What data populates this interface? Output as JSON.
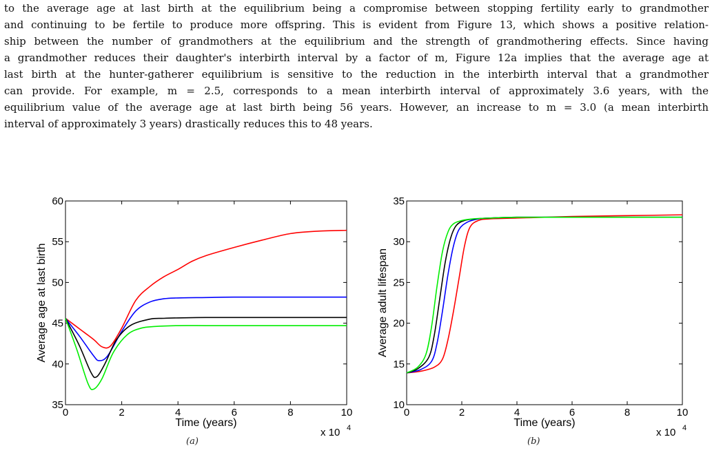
{
  "paragraph": {
    "lines": [
      "to the average age at last birth at the equilibrium being a compromise between stopping fertility early to grandmother",
      "and continuing to be fertile to produce more offspring. This is evident from Figure 13, which shows a positive relation-",
      "ship between the number of grandmothers at the equilibrium and the strength of grandmothering effects. Since having",
      "a grandmother reduces their daughter's interbirth interval by a factor of m, Figure 12a implies that the average age at",
      "last birth at the hunter-gatherer equilibrium is sensitive to the reduction in the interbirth interval that a grandmother",
      "can provide. For example, m = 2.5, corresponds to a mean interbirth interval of approximately 3.6 years, with the",
      "equilibrium value of the average age at last birth being 56 years. However, an increase to m = 3.0 (a mean interbirth",
      "interval of approximately 3 years) drastically reduces this to 48 years."
    ]
  },
  "chart_data": [
    {
      "type": "line",
      "panel_caption": "(a)",
      "xlabel": "Time (years)",
      "ylabel": "Average age at last birth",
      "x_multiplier": "x 10",
      "x_multiplier_exp": "4",
      "xlim": [
        0,
        10
      ],
      "ylim": [
        35,
        60
      ],
      "xticks": [
        "0",
        "2",
        "4",
        "6",
        "8",
        "10"
      ],
      "yticks": [
        "35",
        "40",
        "45",
        "50",
        "55",
        "60"
      ],
      "xtick_values": [
        0,
        2,
        4,
        6,
        8,
        10
      ],
      "ytick_values": [
        35,
        40,
        45,
        50,
        55,
        60
      ],
      "series": [
        {
          "color": "#ff0000",
          "x": [
            0,
            0.5,
            1.0,
            1.3,
            1.6,
            2.0,
            2.5,
            3.0,
            3.5,
            4.0,
            4.5,
            5.0,
            6.0,
            7.0,
            8.0,
            9.0,
            10.0
          ],
          "y": [
            45.6,
            44.3,
            43.0,
            42.1,
            42.2,
            44.4,
            47.8,
            49.5,
            50.7,
            51.6,
            52.6,
            53.3,
            54.3,
            55.2,
            56.0,
            56.3,
            56.4
          ]
        },
        {
          "color": "#0000ff",
          "x": [
            0,
            0.5,
            1.0,
            1.2,
            1.5,
            2.0,
            2.5,
            3.0,
            3.5,
            4.0,
            5.0,
            6.0,
            8.0,
            10.0
          ],
          "y": [
            45.6,
            43.4,
            41.0,
            40.4,
            41.0,
            44.0,
            46.5,
            47.6,
            48.0,
            48.1,
            48.15,
            48.2,
            48.2,
            48.2
          ]
        },
        {
          "color": "#000000",
          "x": [
            0,
            0.5,
            0.9,
            1.1,
            1.4,
            1.8,
            2.3,
            3.0,
            3.5,
            4.0,
            5.0,
            6.0,
            8.0,
            10.0
          ],
          "y": [
            45.6,
            42.2,
            39.0,
            38.4,
            40.0,
            42.9,
            44.7,
            45.5,
            45.6,
            45.65,
            45.7,
            45.7,
            45.7,
            45.7
          ]
        },
        {
          "color": "#00ee00",
          "x": [
            0,
            0.4,
            0.8,
            1.0,
            1.3,
            1.7,
            2.2,
            2.7,
            3.2,
            4.0,
            5.0,
            6.0,
            8.0,
            10.0
          ],
          "y": [
            45.6,
            41.8,
            37.6,
            36.9,
            38.2,
            41.4,
            43.6,
            44.4,
            44.6,
            44.7,
            44.7,
            44.7,
            44.7,
            44.7
          ]
        }
      ]
    },
    {
      "type": "line",
      "panel_caption": "(b)",
      "xlabel": "Time (years)",
      "ylabel": "Average adult lifespan",
      "x_multiplier": "x 10",
      "x_multiplier_exp": "4",
      "xlim": [
        0,
        10
      ],
      "ylim": [
        10,
        35
      ],
      "xticks": [
        "0",
        "2",
        "4",
        "6",
        "8",
        "10"
      ],
      "yticks": [
        "10",
        "15",
        "20",
        "25",
        "30",
        "35"
      ],
      "xtick_values": [
        0,
        2,
        4,
        6,
        8,
        10
      ],
      "ytick_values": [
        10,
        15,
        20,
        25,
        30,
        35
      ],
      "series": [
        {
          "color": "#ff0000",
          "x": [
            0,
            0.5,
            1.0,
            1.3,
            1.5,
            1.7,
            1.9,
            2.1,
            2.3,
            2.6,
            3.0,
            4.0,
            5.0,
            6.0,
            8.0,
            10.0
          ],
          "y": [
            13.9,
            14.1,
            14.6,
            15.6,
            18.0,
            21.5,
            25.5,
            29.5,
            31.8,
            32.6,
            32.8,
            32.9,
            33.0,
            33.1,
            33.2,
            33.3
          ]
        },
        {
          "color": "#0000ff",
          "x": [
            0,
            0.5,
            0.9,
            1.1,
            1.3,
            1.5,
            1.7,
            1.9,
            2.2,
            2.6,
            3.0,
            4.0,
            6.0,
            10.0
          ],
          "y": [
            13.9,
            14.3,
            15.3,
            17.5,
            21.5,
            26.0,
            29.5,
            31.5,
            32.4,
            32.8,
            32.9,
            33.0,
            33.0,
            33.0
          ]
        },
        {
          "color": "#000000",
          "x": [
            0,
            0.4,
            0.8,
            1.0,
            1.2,
            1.4,
            1.6,
            1.8,
            2.1,
            2.5,
            3.0,
            4.0,
            6.0,
            10.0
          ],
          "y": [
            13.9,
            14.4,
            15.8,
            18.5,
            23.0,
            27.5,
            30.5,
            32.0,
            32.6,
            32.8,
            32.9,
            33.0,
            33.0,
            33.0
          ]
        },
        {
          "color": "#00ee00",
          "x": [
            0,
            0.4,
            0.7,
            0.9,
            1.1,
            1.3,
            1.5,
            1.7,
            2.0,
            2.4,
            3.0,
            4.0,
            6.0,
            10.0
          ],
          "y": [
            13.9,
            14.6,
            16.2,
            19.5,
            24.5,
            28.8,
            31.2,
            32.2,
            32.6,
            32.8,
            32.9,
            33.0,
            33.0,
            33.0
          ]
        }
      ]
    }
  ]
}
